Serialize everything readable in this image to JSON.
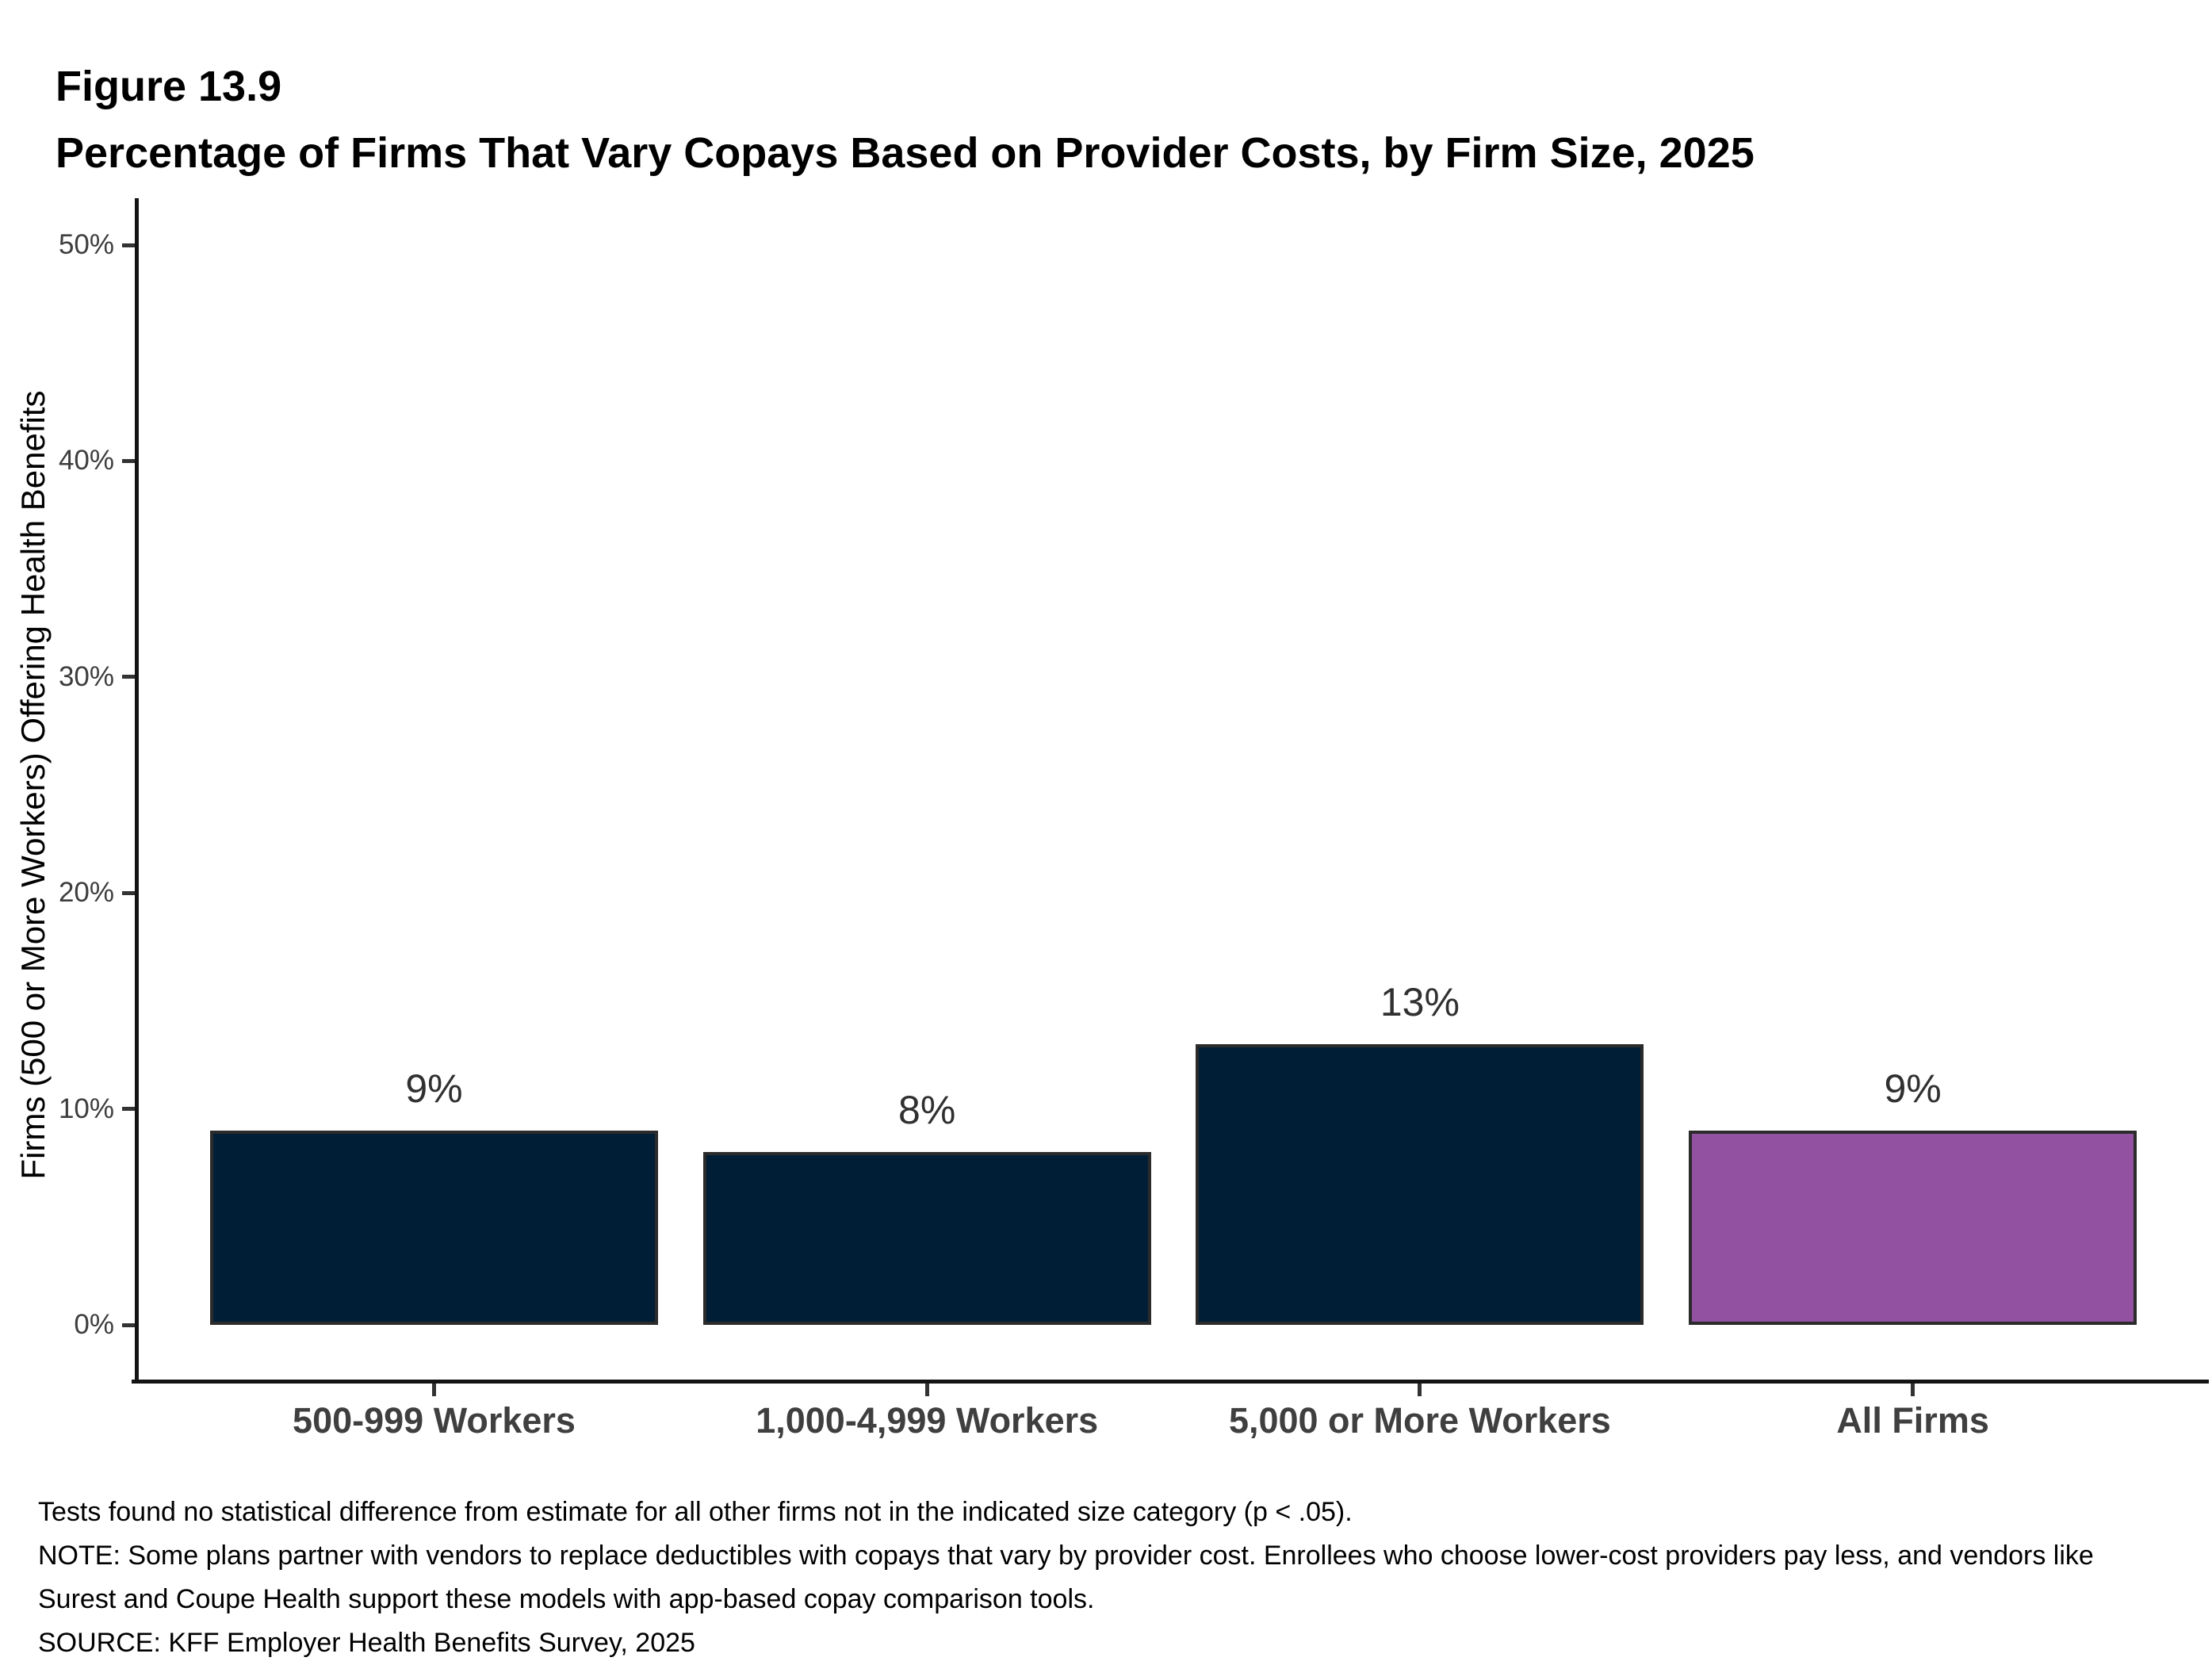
{
  "figure": {
    "label": "Figure 13.9",
    "title": "Percentage of Firms That Vary Copays Based on Provider Costs, by Firm Size, 2025"
  },
  "chart_data": {
    "type": "bar",
    "title": "Percentage of Firms That Vary Copays Based on Provider Costs, by Firm Size, 2025",
    "categories": [
      "500-999 Workers",
      "1,000-4,999 Workers",
      "5,000 or More Workers",
      "All Firms"
    ],
    "values": [
      9,
      8,
      13,
      9
    ],
    "value_labels": [
      "9%",
      "8%",
      "13%",
      "9%"
    ],
    "bar_colors": [
      "#001F36",
      "#001F36",
      "#001F36",
      "#9351A1"
    ],
    "xlabel": "",
    "ylabel": "Firms (500 or More Workers) Offering Health Benefits",
    "ylim": [
      0,
      50
    ],
    "ytick_labels": [
      "0%",
      "10%",
      "20%",
      "30%",
      "40%",
      "50%"
    ],
    "ytick_values": [
      0,
      10,
      20,
      30,
      40,
      50
    ],
    "grid": false,
    "legend_position": "none"
  },
  "notes": {
    "stat_note": "Tests found no statistical difference from estimate for all other firms not in the indicated size category (p < .05).",
    "note": "NOTE: Some plans partner with vendors to replace deductibles with copays that vary by provider cost. Enrollees who choose lower-cost providers pay less, and vendors like Surest and Coupe Health support these models with app-based copay comparison tools.",
    "source": "SOURCE: KFF Employer Health Benefits Survey, 2025"
  },
  "colors": {
    "bar_navy": "#001F36",
    "bar_purple": "#9351A1",
    "bar_border": "#2B2B2B",
    "axis_line": "#141414",
    "tick_label": "#3D3D3D",
    "category_label": "#3F3F3F",
    "value_label": "#303030",
    "title_text": "#000000"
  }
}
